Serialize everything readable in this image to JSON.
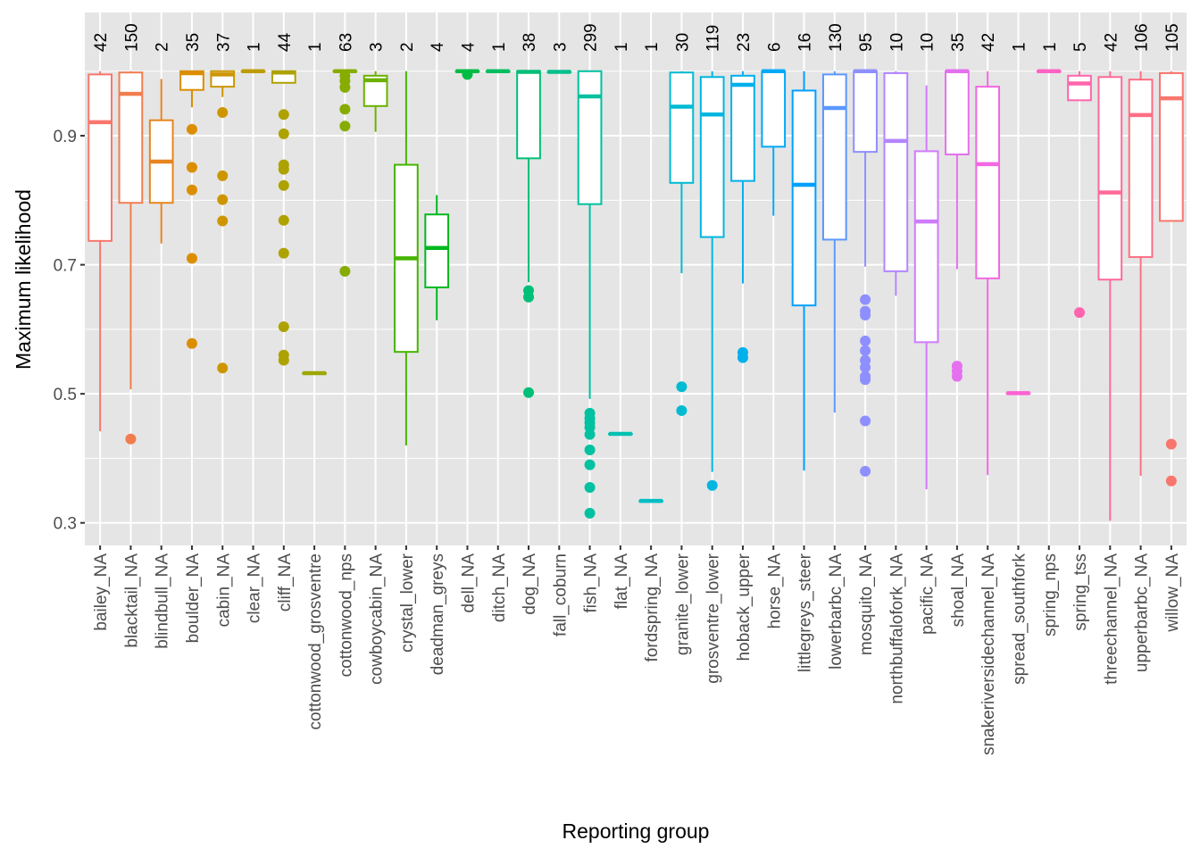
{
  "chart_data": {
    "type": "boxplot",
    "title": "",
    "xlabel": "Reporting group",
    "ylabel": "Maximum likelihood",
    "ylim": [
      0.265,
      1.091
    ],
    "yticks": [
      0.3,
      0.5,
      0.7,
      0.9
    ],
    "ytick_labels": [
      "0.3",
      "0.5",
      "0.7",
      "0.9"
    ],
    "grid": true,
    "legend": "none",
    "categories": [
      "bailey_NA",
      "blacktail_NA",
      "blindbull_NA",
      "boulder_NA",
      "cabin_NA",
      "clear_NA",
      "cliff_NA",
      "cottonwood_grosventre",
      "cottonwood_nps",
      "cowboycabin_NA",
      "crystal_lower",
      "deadman_greys",
      "dell_NA",
      "ditch_NA",
      "dog_NA",
      "fall_coburn",
      "fish_NA",
      "flat_NA",
      "fordspring_NA",
      "granite_lower",
      "grosventre_lower",
      "hoback_upper",
      "horse_NA",
      "littlegreys_steer",
      "lowerbarbc_NA",
      "mosquito_NA",
      "northbuffalofork_NA",
      "pacific_NA",
      "shoal_NA",
      "snakeriversidechannel_NA",
      "spread_southfork",
      "spring_nps",
      "spring_tss",
      "threechannel_NA",
      "upperbarbc_NA",
      "willow_NA"
    ],
    "counts": [
      "42",
      "150",
      "2",
      "35",
      "37",
      "1",
      "44",
      "1",
      "63",
      "3",
      "2",
      "4",
      "4",
      "1",
      "38",
      "3",
      "299",
      "1",
      "1",
      "30",
      "119",
      "23",
      "6",
      "16",
      "130",
      "95",
      "10",
      "10",
      "35",
      "42",
      "1",
      "1",
      "5",
      "42",
      "106",
      "105"
    ],
    "colors": [
      "#F8766D",
      "#F17D4F",
      "#E7851E",
      "#DB8E00",
      "#CD9600",
      "#BE9C00",
      "#AEA200",
      "#9DA700",
      "#87AC00",
      "#6BB100",
      "#46B500",
      "#00B81F",
      "#00BB44",
      "#00BD5F",
      "#00BF77",
      "#00C08C",
      "#00C1A0",
      "#00C0B2",
      "#00BEC3",
      "#00BBD2",
      "#00B6E0",
      "#00B0EC",
      "#00A9F6",
      "#00A0FE",
      "#5B98FF",
      "#8E8FFF",
      "#B385FF",
      "#CF7BFB",
      "#E470F0",
      "#F267E2",
      "#FC61D3",
      "#FF61C2",
      "#FF65AE",
      "#FF6A99",
      "#FE6E84",
      "#F8766D"
    ],
    "boxes": [
      {
        "min": 0.442,
        "q1": 0.737,
        "median": 0.921,
        "q3": 0.995,
        "max": 1.0,
        "outliers": []
      },
      {
        "min": 0.507,
        "q1": 0.796,
        "median": 0.965,
        "q3": 0.998,
        "max": 1.0,
        "outliers": [
          0.43
        ]
      },
      {
        "min": 0.733,
        "q1": 0.796,
        "median": 0.86,
        "q3": 0.924,
        "max": 0.988,
        "outliers": []
      },
      {
        "min": 0.944,
        "q1": 0.971,
        "median": 0.997,
        "q3": 1.0,
        "max": 1.0,
        "outliers": [
          0.91,
          0.851,
          0.816,
          0.71,
          0.578
        ]
      },
      {
        "min": 0.96,
        "q1": 0.976,
        "median": 0.995,
        "q3": 1.0,
        "max": 1.0,
        "outliers": [
          0.936,
          0.838,
          0.801,
          0.768,
          0.54
        ]
      },
      {
        "min": 1.0,
        "q1": 1.0,
        "median": 1.0,
        "q3": 1.0,
        "max": 1.0,
        "outliers": []
      },
      {
        "min": 0.982,
        "q1": 0.982,
        "median": 0.998,
        "q3": 1.0,
        "max": 1.0,
        "outliers": [
          0.933,
          0.903,
          0.855,
          0.848,
          0.823,
          0.769,
          0.718,
          0.604,
          0.56,
          0.552
        ]
      },
      {
        "min": 0.532,
        "q1": 0.532,
        "median": 0.532,
        "q3": 0.532,
        "max": 0.532,
        "outliers": []
      },
      {
        "min": 1.0,
        "q1": 1.0,
        "median": 1.0,
        "q3": 1.0,
        "max": 1.0,
        "outliers": [
          0.993,
          0.985,
          0.975,
          0.941,
          0.915,
          0.69
        ]
      },
      {
        "min": 0.906,
        "q1": 0.946,
        "median": 0.986,
        "q3": 0.993,
        "max": 1.0,
        "outliers": []
      },
      {
        "min": 0.42,
        "q1": 0.565,
        "median": 0.71,
        "q3": 0.855,
        "max": 1.0,
        "outliers": []
      },
      {
        "min": 0.614,
        "q1": 0.665,
        "median": 0.726,
        "q3": 0.778,
        "max": 0.808,
        "outliers": []
      },
      {
        "min": 1.0,
        "q1": 1.0,
        "median": 1.0,
        "q3": 1.0,
        "max": 1.0,
        "outliers": [
          0.995
        ]
      },
      {
        "min": 1.0,
        "q1": 1.0,
        "median": 1.0,
        "q3": 1.0,
        "max": 1.0,
        "outliers": []
      },
      {
        "min": 0.673,
        "q1": 0.865,
        "median": 0.999,
        "q3": 1.0,
        "max": 1.0,
        "outliers": [
          0.66,
          0.65,
          0.502
        ]
      },
      {
        "min": 0.999,
        "q1": 0.999,
        "median": 0.999,
        "q3": 0.999,
        "max": 0.999,
        "outliers": []
      },
      {
        "min": 0.492,
        "q1": 0.794,
        "median": 0.961,
        "q3": 1.0,
        "max": 1.0,
        "outliers": [
          0.47,
          0.462,
          0.455,
          0.448,
          0.437,
          0.413,
          0.39,
          0.355,
          0.315
        ]
      },
      {
        "min": 0.438,
        "q1": 0.438,
        "median": 0.438,
        "q3": 0.438,
        "max": 0.438,
        "outliers": []
      },
      {
        "min": 0.334,
        "q1": 0.334,
        "median": 0.334,
        "q3": 0.334,
        "max": 0.334,
        "outliers": []
      },
      {
        "min": 0.687,
        "q1": 0.827,
        "median": 0.945,
        "q3": 0.998,
        "max": 1.0,
        "outliers": [
          0.511,
          0.474
        ]
      },
      {
        "min": 0.379,
        "q1": 0.743,
        "median": 0.933,
        "q3": 0.991,
        "max": 1.0,
        "outliers": [
          0.358
        ]
      },
      {
        "min": 0.671,
        "q1": 0.83,
        "median": 0.979,
        "q3": 0.993,
        "max": 1.0,
        "outliers": [
          0.564,
          0.556
        ]
      },
      {
        "min": 0.776,
        "q1": 0.883,
        "median": 1.0,
        "q3": 1.0,
        "max": 1.0,
        "outliers": []
      },
      {
        "min": 0.381,
        "q1": 0.637,
        "median": 0.824,
        "q3": 0.97,
        "max": 1.0,
        "outliers": []
      },
      {
        "min": 0.471,
        "q1": 0.739,
        "median": 0.943,
        "q3": 0.995,
        "max": 1.0,
        "outliers": []
      },
      {
        "min": 0.697,
        "q1": 0.875,
        "median": 1.0,
        "q3": 1.0,
        "max": 1.0,
        "outliers": [
          0.646,
          0.628,
          0.622,
          0.582,
          0.567,
          0.552,
          0.541,
          0.527,
          0.522,
          0.458,
          0.38
        ]
      },
      {
        "min": 0.652,
        "q1": 0.69,
        "median": 0.892,
        "q3": 0.997,
        "max": 1.0,
        "outliers": []
      },
      {
        "min": 0.352,
        "q1": 0.58,
        "median": 0.767,
        "q3": 0.876,
        "max": 0.978,
        "outliers": []
      },
      {
        "min": 0.693,
        "q1": 0.871,
        "median": 1.0,
        "q3": 1.0,
        "max": 1.0,
        "outliers": [
          0.543,
          0.535,
          0.527
        ]
      },
      {
        "min": 0.374,
        "q1": 0.679,
        "median": 0.856,
        "q3": 0.976,
        "max": 1.0,
        "outliers": []
      },
      {
        "min": 0.501,
        "q1": 0.501,
        "median": 0.501,
        "q3": 0.501,
        "max": 0.501,
        "outliers": []
      },
      {
        "min": 1.0,
        "q1": 1.0,
        "median": 1.0,
        "q3": 1.0,
        "max": 1.0,
        "outliers": []
      },
      {
        "min": 0.955,
        "q1": 0.955,
        "median": 0.981,
        "q3": 0.993,
        "max": 1.0,
        "outliers": [
          0.626
        ]
      },
      {
        "min": 0.303,
        "q1": 0.677,
        "median": 0.812,
        "q3": 0.991,
        "max": 1.0,
        "outliers": []
      },
      {
        "min": 0.373,
        "q1": 0.712,
        "median": 0.932,
        "q3": 0.987,
        "max": 1.0,
        "outliers": []
      },
      {
        "min": 0.768,
        "q1": 0.768,
        "median": 0.958,
        "q3": 0.997,
        "max": 1.0,
        "outliers": [
          0.422,
          0.365
        ]
      }
    ]
  },
  "style": {
    "panel_background": "#E5E5E5",
    "grid_color": "#FFFFFF",
    "box_fill": "#FFFFFF",
    "tick_color": "#333333"
  }
}
